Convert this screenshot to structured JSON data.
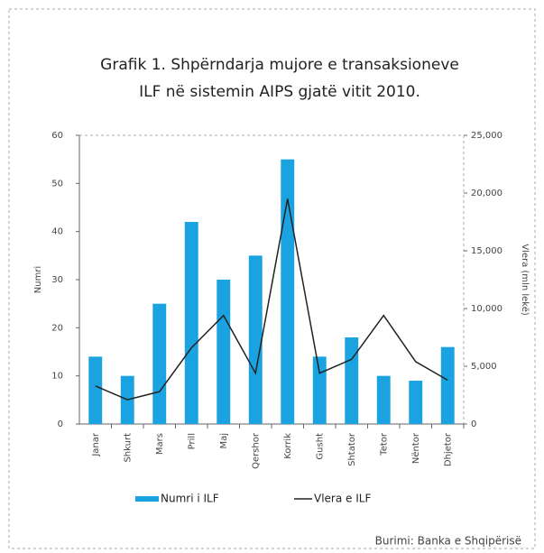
{
  "chart_data": {
    "type": "bar_line",
    "title": [
      "Grafik 1. Shpërndarja mujore e transaksioneve",
      "ILF në sistemin AIPS gjatë vitit 2010."
    ],
    "categories": [
      "Janar",
      "Shkurt",
      "Mars",
      "Prill",
      "Maj",
      "Qershor",
      "Korrik",
      "Gusht",
      "Shtator",
      "Tetor",
      "Nëntor",
      "Dhjetor"
    ],
    "series": [
      {
        "name": "Numri i ILF",
        "type": "bar",
        "color": "#1aa3e0",
        "values": [
          14,
          10,
          25,
          42,
          30,
          35,
          55,
          14,
          18,
          10,
          9,
          16
        ]
      },
      {
        "name": "Vlera e ILF",
        "type": "line",
        "axis": "y2",
        "color": "#222222",
        "values": [
          3300,
          2100,
          2800,
          6600,
          9400,
          4400,
          19500,
          4400,
          5600,
          9400,
          5400,
          3800
        ]
      }
    ],
    "ylabel": "Numri",
    "y2label": "Vlera (mln lekë)",
    "ylim": [
      0,
      60
    ],
    "yticks": [
      0,
      10,
      20,
      30,
      40,
      50,
      60
    ],
    "y2lim": [
      0,
      25000
    ],
    "y2ticks": [
      0,
      {
        "value": 5000,
        "label": "5,000"
      },
      {
        "value": 10000,
        "label": "10,000"
      },
      {
        "value": 15000,
        "label": "15,000"
      },
      {
        "value": 20000,
        "label": "20,000"
      },
      {
        "value": 25000,
        "label": "25,000"
      }
    ],
    "source": "Burimi: Banka e Shqipërisë"
  }
}
